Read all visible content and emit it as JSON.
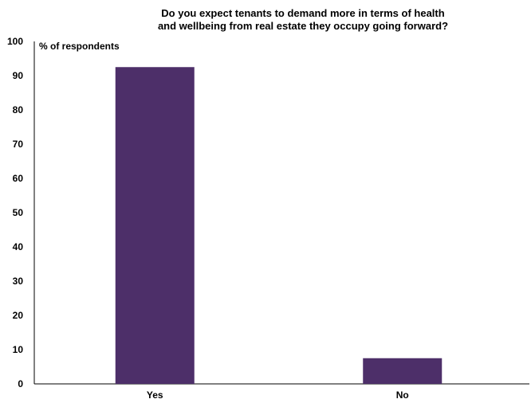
{
  "chart_data": {
    "type": "bar",
    "title_lines": [
      "Do you expect tenants to demand more in terms of health",
      "and wellbeing from real estate they occupy going forward?"
    ],
    "ylabel": "% of respondents",
    "xlabel": "",
    "categories": [
      "Yes",
      "No"
    ],
    "values": [
      92.5,
      7.5
    ],
    "ylim": [
      0,
      100
    ],
    "yticks": [
      0,
      10,
      20,
      30,
      40,
      50,
      60,
      70,
      80,
      90,
      100
    ],
    "grid": false,
    "bar_color": "#4d2f69",
    "axis_color": "#000000"
  }
}
